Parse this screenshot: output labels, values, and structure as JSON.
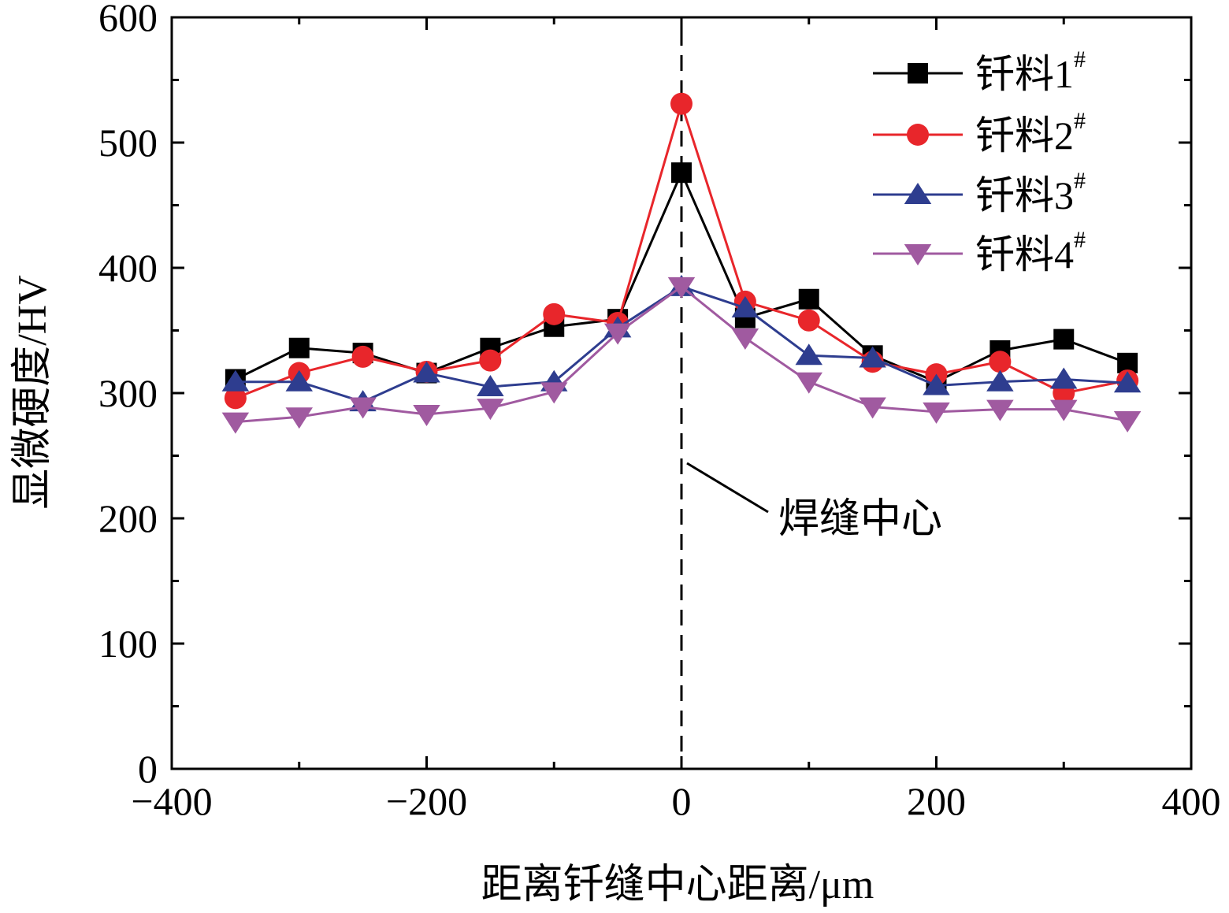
{
  "chart_data": {
    "type": "line",
    "title": "",
    "xlabel": "距离钎缝中心距离/μm",
    "ylabel": "显微硬度/HV",
    "xlim": [
      -400,
      400
    ],
    "ylim": [
      0,
      600
    ],
    "xticks": [
      -400,
      -200,
      0,
      200,
      400
    ],
    "yticks": [
      0,
      100,
      200,
      300,
      400,
      500,
      600
    ],
    "xtick_labels": [
      "−400",
      "−200",
      "0",
      "200",
      "400"
    ],
    "ytick_labels": [
      "0",
      "100",
      "200",
      "300",
      "400",
      "500",
      "600"
    ],
    "grid": false,
    "legend_position": "top-right",
    "x": [
      -350,
      -300,
      -250,
      -200,
      -150,
      -100,
      -50,
      0,
      50,
      100,
      150,
      200,
      250,
      300,
      350
    ],
    "series": [
      {
        "name": "钎料1",
        "superscript": "#",
        "color": "#000000",
        "marker": "square",
        "values": [
          311,
          336,
          332,
          316,
          336,
          353,
          359,
          476,
          360,
          375,
          330,
          309,
          334,
          343,
          324
        ]
      },
      {
        "name": "钎料2",
        "superscript": "#",
        "color": "#e8262b",
        "marker": "circle",
        "values": [
          296,
          316,
          329,
          317,
          326,
          363,
          356,
          531,
          373,
          358,
          325,
          315,
          325,
          300,
          310
        ]
      },
      {
        "name": "钎料3",
        "superscript": "#",
        "color": "#2e3d8f",
        "marker": "triangle-up",
        "values": [
          309,
          309,
          293,
          316,
          305,
          309,
          352,
          385,
          368,
          330,
          328,
          306,
          309,
          311,
          308
        ]
      },
      {
        "name": "钎料4",
        "superscript": "#",
        "color": "#a05aa0",
        "marker": "triangle-down",
        "values": [
          277,
          281,
          289,
          283,
          288,
          301,
          348,
          385,
          344,
          309,
          289,
          285,
          287,
          287,
          278
        ]
      }
    ],
    "annotations": [
      {
        "text": "焊缝中心",
        "x": 0,
        "style": "dashed-vertical-line"
      }
    ]
  }
}
